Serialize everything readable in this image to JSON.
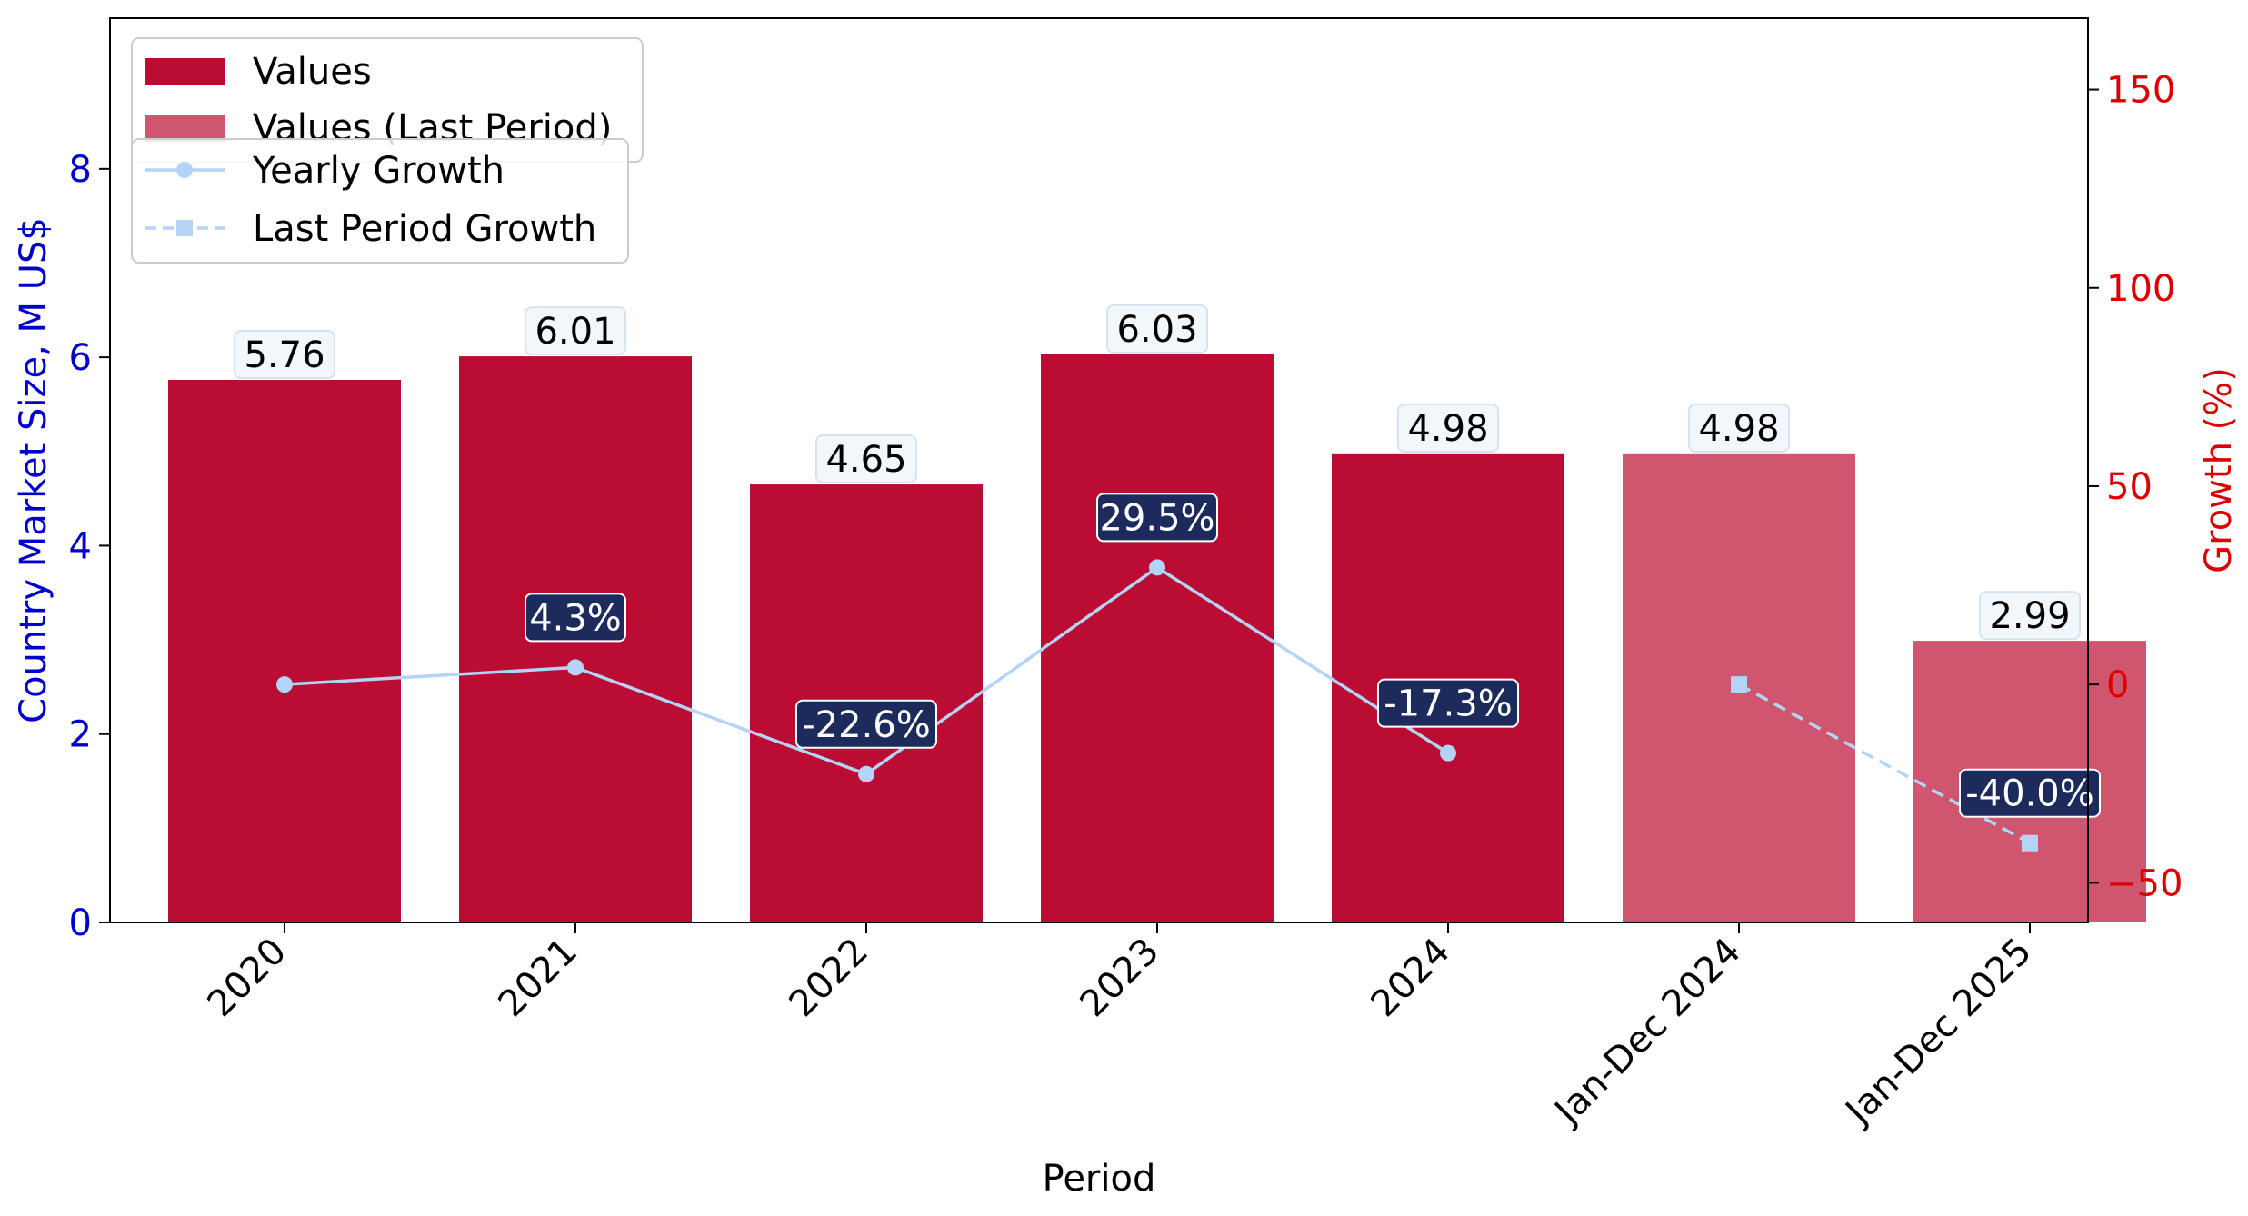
{
  "chart_data": {
    "type": "bar",
    "xlabel": "Period",
    "ylabel_left": "Country Market Size, M US$",
    "ylabel_right": "Growth (%)",
    "ylim_left": [
      0,
      9.6
    ],
    "ylim_right": [
      -60,
      168
    ],
    "yticks_left": [
      0,
      2,
      4,
      6,
      8
    ],
    "yticks_right": [
      -50,
      0,
      50,
      100,
      150
    ],
    "grid": false,
    "legend_placement": "top-left",
    "categories": [
      "2020",
      "2021",
      "2022",
      "2023",
      "2024",
      "Jan-Dec 2024",
      "Jan-Dec 2025"
    ],
    "series": [
      {
        "name": "Values",
        "kind": "bar",
        "values": [
          5.76,
          6.01,
          4.65,
          6.03,
          4.98,
          null,
          null
        ],
        "labels": [
          "5.76",
          "6.01",
          "4.65",
          "6.03",
          "4.98",
          null,
          null
        ],
        "color": "#bb0c33"
      },
      {
        "name": "Values (Last Period)",
        "kind": "bar",
        "values": [
          null,
          null,
          null,
          null,
          null,
          4.98,
          2.99
        ],
        "labels": [
          null,
          null,
          null,
          null,
          null,
          "4.98",
          "2.99"
        ],
        "color": "#d0566f"
      },
      {
        "name": "Yearly Growth",
        "kind": "line",
        "axis": "right",
        "values": [
          0,
          4.3,
          -22.6,
          29.5,
          -17.3,
          null,
          null
        ],
        "labels": [
          null,
          "4.3%",
          "-22.6%",
          "29.5%",
          "-17.3%",
          null,
          null
        ],
        "color": "#b3d4f5",
        "marker": "circle"
      },
      {
        "name": "Last Period Growth",
        "kind": "line",
        "axis": "right",
        "dashed": true,
        "values": [
          null,
          null,
          null,
          null,
          null,
          0,
          -40.0
        ],
        "labels": [
          null,
          null,
          null,
          null,
          null,
          null,
          "-40.0%"
        ],
        "color": "#b3d4f5",
        "marker": "square"
      }
    ],
    "colors": {
      "left_axis": "#0000cc",
      "right_axis": "#dd0000",
      "growth_label_bg": "#1d2a5c",
      "value_label_bg": "#f2f7fc"
    }
  }
}
